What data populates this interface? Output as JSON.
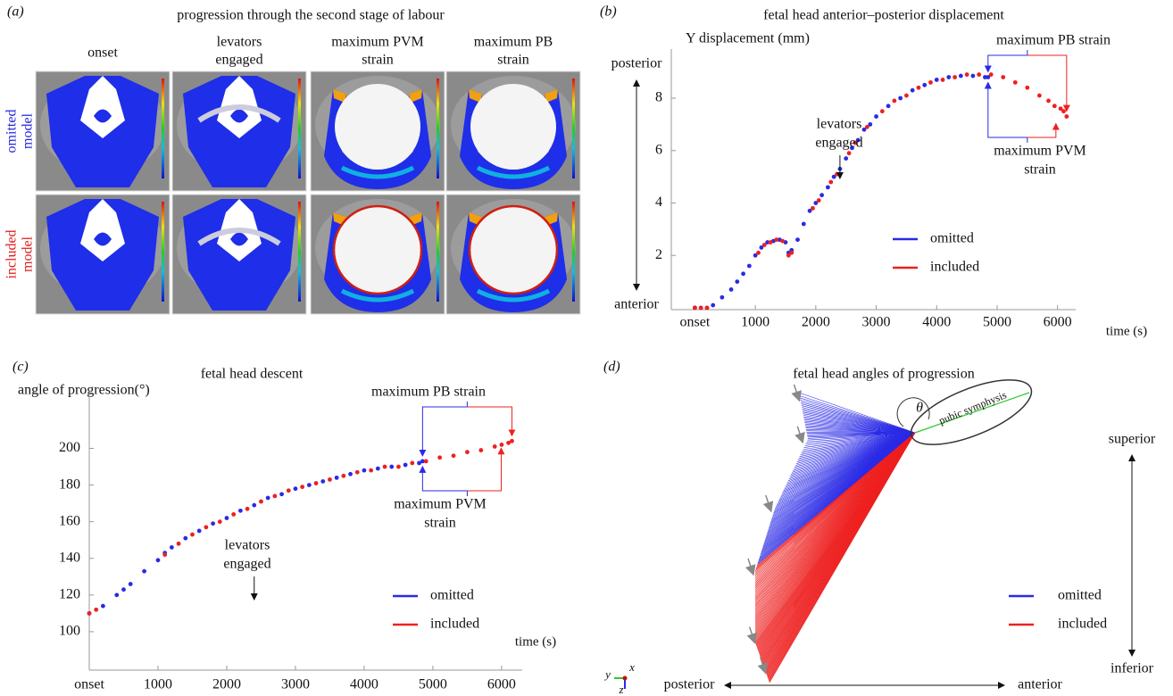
{
  "chart_data": [
    {
      "type": "image-grid",
      "panel": "(a)",
      "title": "progression through the second stage of labour",
      "columns": [
        [
          "onset"
        ],
        [
          "levators",
          "engaged"
        ],
        [
          "maximum PVM",
          "strain"
        ],
        [
          "maximum PB",
          "strain"
        ]
      ],
      "rows": [
        {
          "lines": [
            "omitted",
            "model"
          ],
          "color": "#2222dd"
        },
        {
          "lines": [
            "included",
            "model"
          ],
          "color": "#e01818"
        }
      ]
    },
    {
      "type": "scatter",
      "panel": "(b)",
      "title": "fetal head anterior–posterior displacement",
      "ylabel": "Y displacement (mm)",
      "xlabel": "time (s)",
      "y_side_labels": [
        "posterior",
        "anterior"
      ],
      "annotations": [
        [
          "levators",
          "engaged"
        ],
        [
          "maximum PB strain"
        ],
        [
          "maximum PVM",
          "strain"
        ]
      ],
      "xlim": [
        -390,
        6300
      ],
      "ylim": [
        0,
        9.6
      ],
      "xticks": [
        {
          "value": 0,
          "label": "onset"
        },
        1000,
        2000,
        3000,
        4000,
        5000,
        6000
      ],
      "yticks": [
        2,
        4,
        6,
        8
      ],
      "series": [
        {
          "name": "omitted",
          "color": "#2a2ae6",
          "x": [
            0,
            100,
            200,
            300,
            450,
            600,
            700,
            800,
            900,
            1000,
            1100,
            1200,
            1300,
            1400,
            1500,
            1550,
            1600,
            1700,
            1800,
            1900,
            2000,
            2100,
            2200,
            2300,
            2400,
            2500,
            2600,
            2700,
            2800,
            2900,
            3000,
            3200,
            3400,
            3600,
            3800,
            4000,
            4200,
            4400,
            4600,
            4800,
            4850
          ],
          "values": [
            0,
            0,
            0,
            0.1,
            0.4,
            0.7,
            1.0,
            1.3,
            1.6,
            2.0,
            2.3,
            2.5,
            2.55,
            2.6,
            2.5,
            2.1,
            2.2,
            2.6,
            3.2,
            3.7,
            4.0,
            4.3,
            4.6,
            5.0,
            5.3,
            5.7,
            6.1,
            6.4,
            6.8,
            7.0,
            7.3,
            7.7,
            8.0,
            8.3,
            8.5,
            8.7,
            8.8,
            8.85,
            8.85,
            8.8,
            8.8
          ]
        },
        {
          "name": "included",
          "color": "#ee2020",
          "x": [
            0,
            100,
            200,
            1050,
            1150,
            1250,
            1350,
            1450,
            1550,
            1600,
            1950,
            2050,
            2250,
            2350,
            2550,
            2650,
            2850,
            3100,
            3300,
            3500,
            3700,
            3900,
            4100,
            4300,
            4500,
            4700,
            4900,
            5100,
            5300,
            5500,
            5700,
            5850,
            5950,
            6050,
            6100,
            6150
          ],
          "values": [
            0,
            0,
            0,
            2.1,
            2.4,
            2.5,
            2.6,
            2.55,
            2.0,
            2.1,
            3.8,
            4.1,
            4.8,
            5.1,
            5.9,
            6.3,
            6.9,
            7.5,
            7.9,
            8.1,
            8.4,
            8.6,
            8.7,
            8.8,
            8.9,
            8.9,
            8.9,
            8.8,
            8.6,
            8.4,
            8.1,
            7.9,
            7.7,
            7.6,
            7.5,
            7.3
          ]
        }
      ]
    },
    {
      "type": "scatter",
      "panel": "(c)",
      "title": "fetal head descent",
      "ylabel": "angle of progression(°)",
      "xlabel": "time (s)",
      "annotations": [
        [
          "levators",
          "engaged"
        ],
        [
          "maximum PB strain"
        ],
        [
          "maximum PVM",
          "strain"
        ]
      ],
      "xlim": [
        0,
        6300
      ],
      "ylim": [
        80,
        228
      ],
      "xticks": [
        {
          "value": 0,
          "label": "onset"
        },
        1000,
        2000,
        3000,
        4000,
        5000,
        6000
      ],
      "yticks": [
        100,
        120,
        140,
        160,
        180,
        200
      ],
      "series": [
        {
          "name": "omitted",
          "color": "#2a2ae6",
          "x": [
            0,
            200,
            400,
            500,
            600,
            800,
            1000,
            1100,
            1200,
            1400,
            1600,
            1800,
            2000,
            2200,
            2400,
            2600,
            2800,
            3000,
            3200,
            3400,
            3600,
            3800,
            4000,
            4200,
            4400,
            4600,
            4800,
            4850
          ],
          "values": [
            110,
            114,
            120,
            123,
            126,
            133,
            139,
            143,
            146,
            151,
            155,
            159,
            162,
            166,
            169,
            173,
            175,
            178,
            180,
            182,
            184,
            186,
            188,
            189,
            190,
            191,
            192,
            193
          ]
        },
        {
          "name": "included",
          "color": "#ee2020",
          "x": [
            0,
            100,
            1100,
            1300,
            1500,
            1700,
            1900,
            2100,
            2300,
            2500,
            2700,
            2900,
            3100,
            3300,
            3500,
            3700,
            3900,
            4100,
            4300,
            4500,
            4700,
            4900,
            5100,
            5300,
            5500,
            5700,
            5900,
            6000,
            6100,
            6150
          ],
          "values": [
            110,
            112,
            142,
            148,
            153,
            157,
            160,
            164,
            167,
            171,
            174,
            177,
            179,
            181,
            183,
            185,
            187,
            188,
            190,
            190,
            192,
            193,
            195,
            196,
            198,
            199,
            201,
            202,
            203,
            204
          ]
        }
      ]
    },
    {
      "type": "diagram",
      "panel": "(d)",
      "title": "fetal head angles of progression",
      "angle_label": "θ",
      "structure_label": "pubic symphysis",
      "vertical_labels": [
        "superior",
        "inferior"
      ],
      "horizontal_labels": [
        "posterior",
        "anterior"
      ],
      "triad_labels": [
        "y",
        "x",
        "z"
      ],
      "series": [
        {
          "name": "omitted",
          "color": "#2a2ae6"
        },
        {
          "name": "included",
          "color": "#ee2020"
        }
      ]
    }
  ]
}
